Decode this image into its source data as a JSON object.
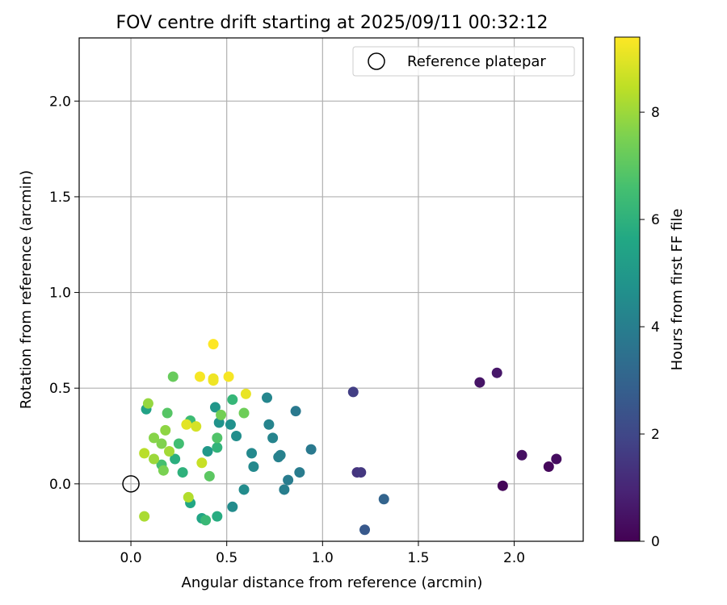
{
  "chart_data": {
    "type": "scatter",
    "title": "FOV centre drift starting at 2025/09/11 00:32:12",
    "xlabel": "Angular distance from reference (arcmin)",
    "ylabel": "Rotation from reference (arcmin)",
    "xlim": [
      -0.27,
      2.36
    ],
    "ylim": [
      -0.3,
      2.33
    ],
    "xticks": [
      0.0,
      0.5,
      1.0,
      1.5,
      2.0
    ],
    "xtick_labels": [
      "0.0",
      "0.5",
      "1.0",
      "1.5",
      "2.0"
    ],
    "yticks": [
      0.0,
      0.5,
      1.0,
      1.5,
      2.0
    ],
    "ytick_labels": [
      "0.0",
      "0.5",
      "1.0",
      "1.5",
      "2.0"
    ],
    "grid": true,
    "legend": {
      "position": "top-right",
      "entries": [
        "Reference platepar"
      ]
    },
    "reference_point": {
      "label": "Reference platepar",
      "x": 0.0,
      "y": 0.0
    },
    "colorbar": {
      "label": "Hours from first FF file",
      "min": 0,
      "max": 9.4,
      "ticks": [
        0,
        2,
        4,
        6,
        8
      ],
      "tick_labels": [
        "0",
        "2",
        "4",
        "6",
        "8"
      ],
      "colormap": "viridis"
    },
    "points": [
      {
        "x": 1.94,
        "y": -0.01,
        "h": 0.1
      },
      {
        "x": 2.18,
        "y": 0.09,
        "h": 0.2
      },
      {
        "x": 2.22,
        "y": 0.13,
        "h": 0.3
      },
      {
        "x": 2.04,
        "y": 0.15,
        "h": 0.4
      },
      {
        "x": 1.82,
        "y": 0.53,
        "h": 0.5
      },
      {
        "x": 1.91,
        "y": 0.58,
        "h": 0.6
      },
      {
        "x": 1.18,
        "y": 0.06,
        "h": 1.4
      },
      {
        "x": 1.2,
        "y": 0.06,
        "h": 1.5
      },
      {
        "x": 1.16,
        "y": 0.48,
        "h": 1.7
      },
      {
        "x": 1.22,
        "y": -0.24,
        "h": 2.6
      },
      {
        "x": 1.32,
        "y": -0.08,
        "h": 3.0
      },
      {
        "x": 0.94,
        "y": 0.18,
        "h": 3.8
      },
      {
        "x": 0.86,
        "y": 0.38,
        "h": 3.8
      },
      {
        "x": 0.88,
        "y": 0.06,
        "h": 3.9
      },
      {
        "x": 0.82,
        "y": 0.02,
        "h": 3.9
      },
      {
        "x": 0.8,
        "y": -0.03,
        "h": 4.0
      },
      {
        "x": 0.77,
        "y": 0.14,
        "h": 4.1
      },
      {
        "x": 0.78,
        "y": 0.15,
        "h": 4.1
      },
      {
        "x": 0.74,
        "y": 0.24,
        "h": 4.2
      },
      {
        "x": 0.72,
        "y": 0.31,
        "h": 4.2
      },
      {
        "x": 0.71,
        "y": 0.45,
        "h": 4.3
      },
      {
        "x": 0.64,
        "y": 0.09,
        "h": 4.4
      },
      {
        "x": 0.63,
        "y": 0.16,
        "h": 4.4
      },
      {
        "x": 0.59,
        "y": -0.03,
        "h": 4.5
      },
      {
        "x": 0.53,
        "y": -0.12,
        "h": 4.5
      },
      {
        "x": 0.55,
        "y": 0.25,
        "h": 4.6
      },
      {
        "x": 0.52,
        "y": 0.31,
        "h": 4.7
      },
      {
        "x": 0.46,
        "y": 0.32,
        "h": 4.8
      },
      {
        "x": 0.44,
        "y": 0.4,
        "h": 4.9
      },
      {
        "x": 0.4,
        "y": 0.17,
        "h": 5.0
      },
      {
        "x": 0.08,
        "y": 0.39,
        "h": 5.4
      },
      {
        "x": 0.37,
        "y": -0.18,
        "h": 5.5
      },
      {
        "x": 0.31,
        "y": -0.1,
        "h": 5.6
      },
      {
        "x": 0.45,
        "y": -0.17,
        "h": 5.8
      },
      {
        "x": 0.23,
        "y": 0.13,
        "h": 5.9
      },
      {
        "x": 0.27,
        "y": 0.06,
        "h": 6.0
      },
      {
        "x": 0.45,
        "y": 0.19,
        "h": 6.1
      },
      {
        "x": 0.53,
        "y": 0.44,
        "h": 6.2
      },
      {
        "x": 0.39,
        "y": -0.19,
        "h": 6.3
      },
      {
        "x": 0.31,
        "y": 0.33,
        "h": 6.4
      },
      {
        "x": 0.25,
        "y": 0.21,
        "h": 6.5
      },
      {
        "x": 0.16,
        "y": 0.1,
        "h": 6.6
      },
      {
        "x": 0.45,
        "y": 0.24,
        "h": 6.8
      },
      {
        "x": 0.19,
        "y": 0.37,
        "h": 6.9
      },
      {
        "x": 0.41,
        "y": 0.04,
        "h": 7.0
      },
      {
        "x": 0.22,
        "y": 0.56,
        "h": 7.2
      },
      {
        "x": 0.59,
        "y": 0.37,
        "h": 7.3
      },
      {
        "x": 0.47,
        "y": 0.36,
        "h": 7.4
      },
      {
        "x": 0.17,
        "y": 0.07,
        "h": 7.5
      },
      {
        "x": 0.16,
        "y": 0.21,
        "h": 7.6
      },
      {
        "x": 0.12,
        "y": 0.24,
        "h": 7.7
      },
      {
        "x": 0.18,
        "y": 0.28,
        "h": 7.8
      },
      {
        "x": 0.09,
        "y": 0.42,
        "h": 7.9
      },
      {
        "x": 0.12,
        "y": 0.13,
        "h": 8.0
      },
      {
        "x": 0.2,
        "y": 0.17,
        "h": 8.1
      },
      {
        "x": 0.07,
        "y": -0.17,
        "h": 8.2
      },
      {
        "x": 0.3,
        "y": -0.07,
        "h": 8.3
      },
      {
        "x": 0.07,
        "y": 0.16,
        "h": 8.4
      },
      {
        "x": 0.37,
        "y": 0.11,
        "h": 8.6
      },
      {
        "x": 0.34,
        "y": 0.3,
        "h": 8.8
      },
      {
        "x": 0.29,
        "y": 0.31,
        "h": 9.0
      },
      {
        "x": 0.6,
        "y": 0.47,
        "h": 9.1
      },
      {
        "x": 0.43,
        "y": 0.54,
        "h": 9.2
      },
      {
        "x": 0.43,
        "y": 0.55,
        "h": 9.2
      },
      {
        "x": 0.36,
        "y": 0.56,
        "h": 9.3
      },
      {
        "x": 0.51,
        "y": 0.56,
        "h": 9.3
      },
      {
        "x": 0.43,
        "y": 0.73,
        "h": 9.4
      }
    ]
  }
}
